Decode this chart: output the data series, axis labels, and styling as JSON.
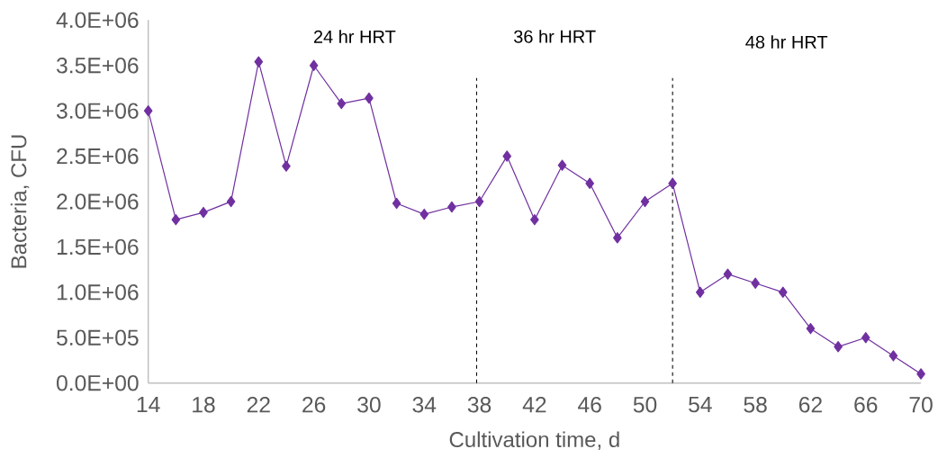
{
  "chart_data": {
    "type": "line",
    "xlabel": "Cultivation time, d",
    "ylabel": "Bacteria, CFU",
    "x": [
      14,
      16,
      18,
      20,
      22,
      24,
      26,
      28,
      30,
      32,
      34,
      36,
      38,
      40,
      42,
      44,
      46,
      48,
      50,
      52,
      54,
      56,
      58,
      60,
      62,
      64,
      66,
      68,
      70
    ],
    "series": [
      {
        "color": "#7030a0",
        "values": [
          3000000,
          1800000,
          1880000,
          2000000,
          3540000,
          2390000,
          3500000,
          3080000,
          3140000,
          1980000,
          1860000,
          1940000,
          2000000,
          2500000,
          1800000,
          2400000,
          2200000,
          1600000,
          2000000,
          2200000,
          1000000,
          1200000,
          1100000,
          1000000,
          600000,
          400000,
          500000,
          300000,
          100000
        ]
      }
    ],
    "xlim": [
      14,
      70
    ],
    "xticks": [
      14,
      18,
      22,
      26,
      30,
      34,
      38,
      42,
      46,
      50,
      54,
      58,
      62,
      66,
      70
    ],
    "ylim": [
      0,
      4000000
    ],
    "yticks": [
      {
        "value": 0,
        "label": "0.0E+00"
      },
      {
        "value": 500000,
        "label": "5.0E+05"
      },
      {
        "value": 1000000,
        "label": "1.0E+06"
      },
      {
        "value": 1500000,
        "label": "1.5E+06"
      },
      {
        "value": 2000000,
        "label": "2.0E+06"
      },
      {
        "value": 2500000,
        "label": "2.5E+06"
      },
      {
        "value": 3000000,
        "label": "3.0E+06"
      },
      {
        "value": 3500000,
        "label": "3.5E+06"
      },
      {
        "value": 4000000,
        "label": "4.0E+06"
      }
    ],
    "ref_lines": [
      {
        "axis": "x",
        "value": 37.8,
        "color": "#000000",
        "line_style": "dashed"
      },
      {
        "axis": "x",
        "value": 52,
        "color": "#000000",
        "line_style": "dashed"
      }
    ],
    "annotations": [
      "24 hr HRT",
      "36 hr HRT",
      "48 hr HRT"
    ],
    "marker": "diamond",
    "line_style": "solid"
  }
}
